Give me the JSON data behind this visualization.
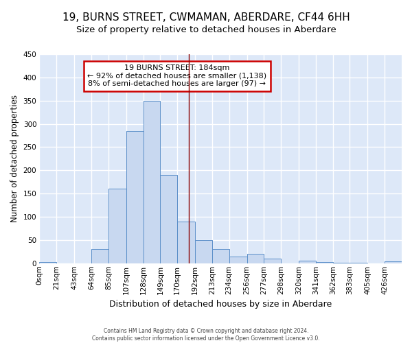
{
  "title1": "19, BURNS STREET, CWMAMAN, ABERDARE, CF44 6HH",
  "title2": "Size of property relative to detached houses in Aberdare",
  "xlabel": "Distribution of detached houses by size in Aberdare",
  "ylabel": "Number of detached properties",
  "bin_edges": [
    0,
    21,
    43,
    64,
    85,
    107,
    128,
    149,
    170,
    192,
    213,
    234,
    256,
    277,
    298,
    320,
    341,
    362,
    383,
    405,
    426,
    447
  ],
  "bin_labels": [
    "0sqm",
    "21sqm",
    "43sqm",
    "64sqm",
    "85sqm",
    "107sqm",
    "128sqm",
    "149sqm",
    "170sqm",
    "192sqm",
    "213sqm",
    "234sqm",
    "256sqm",
    "277sqm",
    "298sqm",
    "320sqm",
    "341sqm",
    "362sqm",
    "383sqm",
    "405sqm",
    "426sqm"
  ],
  "counts": [
    3,
    0,
    0,
    30,
    160,
    285,
    350,
    190,
    90,
    50,
    30,
    15,
    20,
    10,
    0,
    5,
    2,
    1,
    1,
    0,
    4
  ],
  "bar_facecolor": "#c8d8f0",
  "bar_edgecolor": "#5b8fc9",
  "vline_x": 184,
  "vline_color": "#8b0000",
  "annotation_title": "19 BURNS STREET: 184sqm",
  "annotation_line1": "← 92% of detached houses are smaller (1,138)",
  "annotation_line2": "8% of semi-detached houses are larger (97) →",
  "annotation_box_edgecolor": "#cc0000",
  "ylim": [
    0,
    450
  ],
  "yticks": [
    0,
    50,
    100,
    150,
    200,
    250,
    300,
    350,
    400,
    450
  ],
  "plot_bg_color": "#dde8f8",
  "fig_bg_color": "#ffffff",
  "grid_color": "#ffffff",
  "title1_fontsize": 11,
  "title2_fontsize": 9.5,
  "xlabel_fontsize": 9,
  "ylabel_fontsize": 8.5,
  "tick_fontsize": 7.5,
  "annot_fontsize": 8,
  "footer": "Contains HM Land Registry data © Crown copyright and database right 2024.\nContains public sector information licensed under the Open Government Licence v3.0."
}
